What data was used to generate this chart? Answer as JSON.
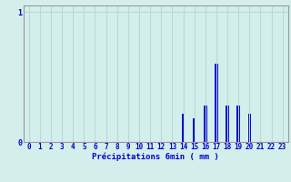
{
  "title": "",
  "xlabel": "Précipitations 6min ( mm )",
  "ylabel": "",
  "background_color": "#d4eeec",
  "bar_color": "#0000cc",
  "grid_color": "#b8dbd8",
  "axis_color": "#999999",
  "text_color": "#0000cc",
  "xlim": [
    -0.5,
    23.5
  ],
  "ylim": [
    0,
    1.05
  ],
  "yticks": [
    0,
    1
  ],
  "xticks": [
    0,
    1,
    2,
    3,
    4,
    5,
    6,
    7,
    8,
    9,
    10,
    11,
    12,
    13,
    14,
    15,
    16,
    17,
    18,
    19,
    20,
    21,
    22,
    23
  ],
  "hours": [
    0,
    1,
    2,
    3,
    4,
    5,
    6,
    7,
    8,
    9,
    10,
    11,
    12,
    13,
    14,
    15,
    16,
    17,
    18,
    19,
    20,
    21,
    22,
    23
  ],
  "values": [
    0,
    0,
    0,
    0,
    0,
    0,
    0,
    0,
    0,
    0,
    0,
    0,
    0,
    0,
    0.22,
    0.18,
    0.28,
    0.6,
    0.28,
    0.28,
    0.22,
    0,
    0,
    0
  ]
}
